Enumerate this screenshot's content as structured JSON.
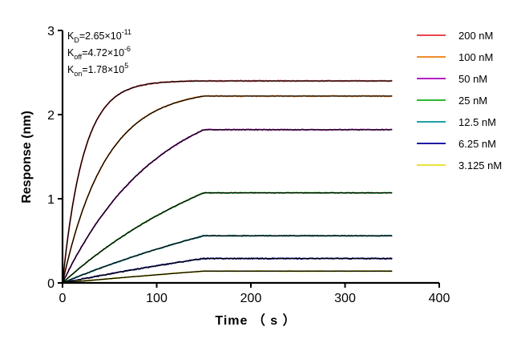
{
  "chart_data": {
    "type": "line",
    "title": "",
    "xlabel": "Time （ s ）",
    "ylabel": "Response (nm)",
    "xlim": [
      0,
      400
    ],
    "ylim": [
      0,
      3
    ],
    "x_ticks": [
      "0",
      "100",
      "200",
      "300",
      "400"
    ],
    "y_ticks": [
      "0",
      "1",
      "2",
      "3"
    ],
    "grid": false,
    "legend_position": "top-right",
    "association_end": 150,
    "end_time": 350,
    "kinetics": [
      {
        "sym": "K",
        "sub": "D",
        "eq": "=2.65×10",
        "exp": "-11"
      },
      {
        "sym": "K",
        "sub": "off",
        "eq": "=4.72×10",
        "exp": "-6"
      },
      {
        "sym": "K",
        "sub": "on",
        "eq": "=1.78×10",
        "exp": "5"
      }
    ],
    "series": [
      {
        "name": "200 nM",
        "color": "#e8474a",
        "plateau": 2.4,
        "kobs": 0.045
      },
      {
        "name": "100 nM",
        "color": "#f08c2b",
        "plateau": 2.22,
        "kobs": 0.022
      },
      {
        "name": "50 nM",
        "color": "#b51fc1",
        "plateau": 1.82,
        "kobs": 0.01
      },
      {
        "name": "25 nM",
        "color": "#2eb82e",
        "plateau": 1.07,
        "kobs": 0.005
      },
      {
        "name": "12.5 nM",
        "color": "#1fa2a2",
        "plateau": 0.56,
        "kobs": 0.003
      },
      {
        "name": "6.25 nM",
        "color": "#1c1ca6",
        "plateau": 0.29,
        "kobs": 0.002
      },
      {
        "name": "3.125 nM",
        "color": "#e8e23a",
        "plateau": 0.14,
        "kobs": 0.0013
      }
    ],
    "fit_color": "#000000"
  }
}
